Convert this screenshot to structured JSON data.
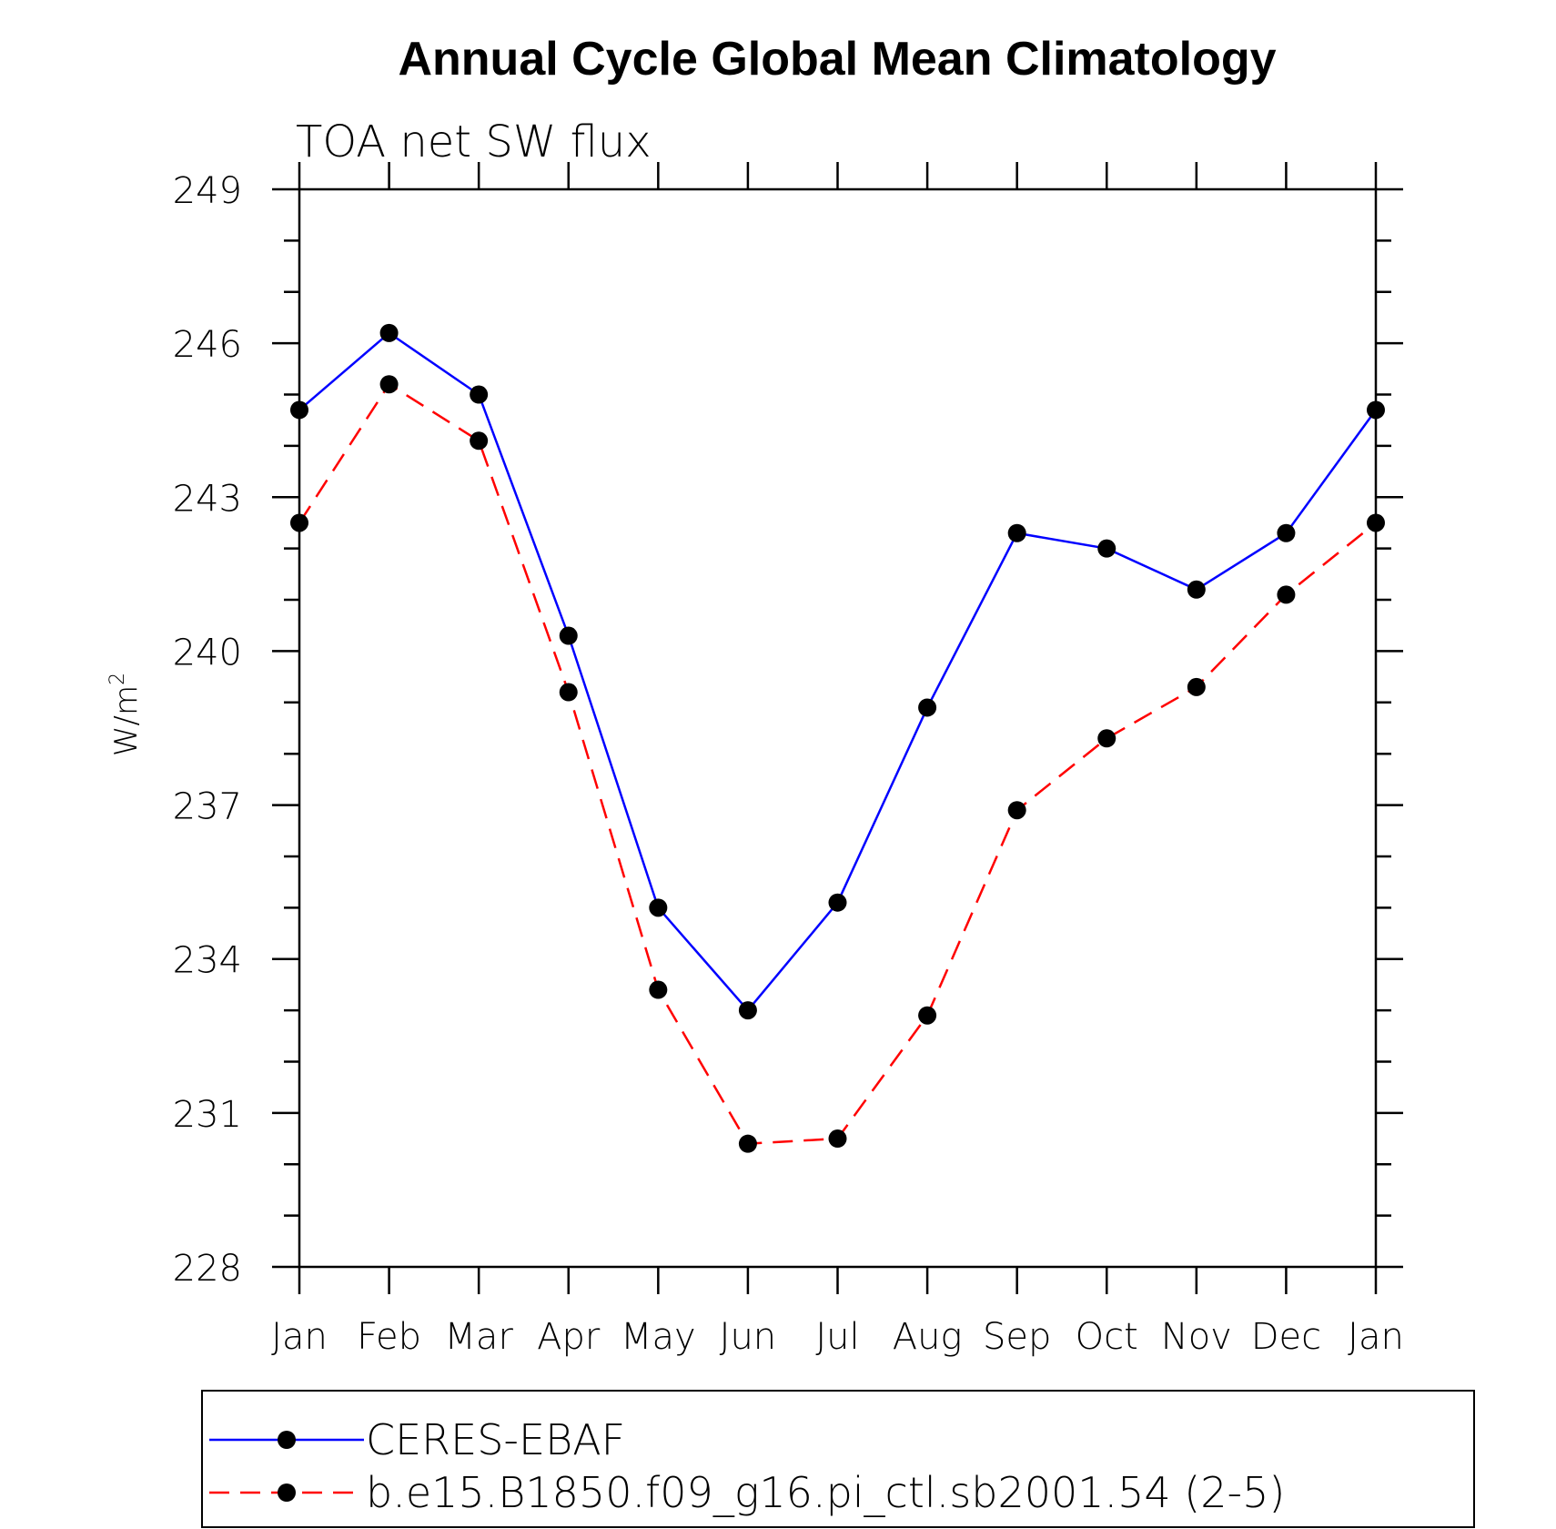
{
  "chart_data": {
    "type": "line",
    "title": "Annual Cycle Global Mean Climatology",
    "subtitle": "TOA net SW flux",
    "xlabel": "",
    "ylabel": "W/m",
    "ylabel_superscript": "2",
    "categories": [
      "Jan",
      "Feb",
      "Mar",
      "Apr",
      "May",
      "Jun",
      "Jul",
      "Aug",
      "Sep",
      "Oct",
      "Nov",
      "Dec",
      "Jan"
    ],
    "ylim": [
      228,
      249
    ],
    "yticks": [
      228,
      231,
      234,
      237,
      240,
      243,
      246,
      249
    ],
    "series": [
      {
        "name": "CERES-EBAF",
        "color": "#0000ff",
        "dash": "solid",
        "values": [
          244.7,
          246.2,
          245.0,
          240.3,
          235.0,
          233.0,
          235.1,
          238.9,
          242.3,
          242.0,
          241.2,
          242.3,
          244.7
        ]
      },
      {
        "name": "b.e15.B1850.f09_g16.pi_ctl.sb2001.54 (2-5)",
        "color": "#ff0000",
        "dash": "dashed",
        "values": [
          242.5,
          245.2,
          244.1,
          239.2,
          233.4,
          230.4,
          230.5,
          232.9,
          236.9,
          238.3,
          239.3,
          241.1,
          242.5
        ]
      }
    ],
    "marker_color": "#000000",
    "legend_position": "bottom",
    "grid": false
  }
}
